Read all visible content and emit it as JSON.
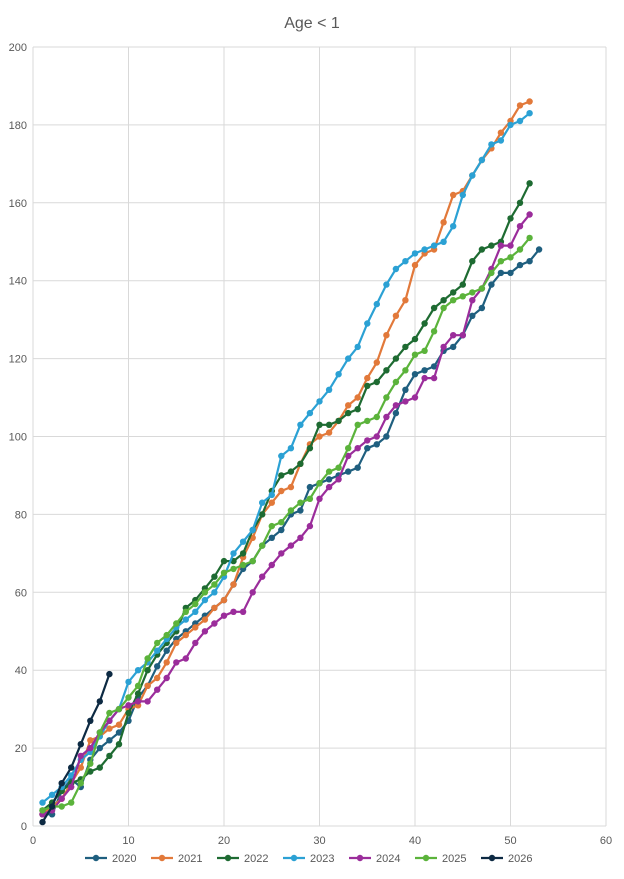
{
  "chart_data": {
    "type": "line",
    "title": "Age < 1",
    "xlabel": "",
    "ylabel": "",
    "xlim": [
      0,
      60
    ],
    "ylim": [
      0,
      200
    ],
    "x_ticks": [
      0,
      10,
      20,
      30,
      40,
      50,
      60
    ],
    "y_ticks": [
      0,
      20,
      40,
      60,
      80,
      100,
      120,
      140,
      160,
      180,
      200
    ],
    "grid": true,
    "legend_position": "bottom",
    "series": [
      {
        "name": "2020",
        "color": "#1f5f7f",
        "x": [
          1,
          2,
          3,
          4,
          5,
          6,
          7,
          8,
          9,
          10,
          11,
          12,
          13,
          14,
          15,
          16,
          17,
          18,
          19,
          20,
          21,
          22,
          23,
          24,
          25,
          26,
          27,
          28,
          29,
          30,
          31,
          32,
          33,
          34,
          35,
          36,
          37,
          38,
          39,
          40,
          41,
          42,
          43,
          44,
          45,
          46,
          47,
          48,
          49,
          50,
          51,
          52,
          53
        ],
        "y": [
          3,
          3,
          9,
          12,
          10,
          17,
          20,
          22,
          24,
          27,
          33,
          36,
          41,
          45,
          48,
          50,
          52,
          54,
          56,
          58,
          62,
          66,
          68,
          72,
          74,
          76,
          80,
          81,
          87,
          88,
          89,
          90,
          91,
          92,
          97,
          98,
          100,
          106,
          112,
          116,
          117,
          118,
          122,
          123,
          126,
          131,
          133,
          139,
          142,
          142,
          144,
          145,
          148
        ]
      },
      {
        "name": "2021",
        "color": "#e2793a",
        "x": [
          1,
          2,
          3,
          4,
          5,
          6,
          7,
          8,
          9,
          10,
          11,
          12,
          13,
          14,
          15,
          16,
          17,
          18,
          19,
          20,
          21,
          22,
          23,
          24,
          25,
          26,
          27,
          28,
          29,
          30,
          31,
          32,
          33,
          34,
          35,
          36,
          37,
          38,
          39,
          40,
          41,
          42,
          43,
          44,
          45,
          46,
          47,
          48,
          49,
          50,
          51,
          52
        ],
        "y": [
          3,
          5,
          7,
          11,
          15,
          22,
          23,
          25,
          26,
          30,
          31,
          36,
          38,
          42,
          47,
          49,
          51,
          53,
          56,
          58,
          62,
          69,
          74,
          80,
          83,
          86,
          87,
          93,
          98,
          100,
          101,
          104,
          108,
          110,
          115,
          119,
          126,
          131,
          135,
          144,
          147,
          148,
          155,
          162,
          163,
          167,
          171,
          174,
          178,
          181,
          185,
          186
        ]
      },
      {
        "name": "2022",
        "color": "#1e6b32",
        "x": [
          1,
          2,
          3,
          4,
          5,
          6,
          7,
          8,
          9,
          10,
          11,
          12,
          13,
          14,
          15,
          16,
          17,
          18,
          19,
          20,
          21,
          22,
          23,
          24,
          25,
          26,
          27,
          28,
          29,
          30,
          31,
          32,
          33,
          34,
          35,
          36,
          37,
          38,
          39,
          40,
          41,
          42,
          43,
          44,
          45,
          46,
          47,
          48,
          49,
          50,
          51,
          52
        ],
        "y": [
          4,
          6,
          9,
          11,
          12,
          14,
          15,
          18,
          21,
          29,
          34,
          40,
          44,
          47,
          50,
          56,
          58,
          61,
          64,
          68,
          68,
          70,
          76,
          80,
          86,
          90,
          91,
          93,
          97,
          103,
          103,
          104,
          106,
          107,
          113,
          114,
          117,
          120,
          123,
          125,
          129,
          133,
          135,
          137,
          139,
          145,
          148,
          149,
          150,
          156,
          160,
          165
        ]
      },
      {
        "name": "2023",
        "color": "#2ba1d4",
        "x": [
          1,
          2,
          3,
          4,
          5,
          6,
          7,
          8,
          9,
          10,
          11,
          12,
          13,
          14,
          15,
          16,
          17,
          18,
          19,
          20,
          21,
          22,
          23,
          24,
          25,
          26,
          27,
          28,
          29,
          30,
          31,
          32,
          33,
          34,
          35,
          36,
          37,
          38,
          39,
          40,
          41,
          42,
          43,
          44,
          45,
          46,
          47,
          48,
          49,
          50,
          51,
          52
        ],
        "y": [
          6,
          8,
          10,
          13,
          17,
          19,
          23,
          27,
          30,
          37,
          40,
          42,
          45,
          48,
          51,
          53,
          55,
          58,
          60,
          64,
          70,
          73,
          76,
          83,
          85,
          95,
          97,
          103,
          106,
          109,
          112,
          116,
          120,
          123,
          129,
          134,
          139,
          143,
          145,
          147,
          148,
          149,
          150,
          154,
          162,
          167,
          171,
          175,
          176,
          180,
          181,
          183
        ]
      },
      {
        "name": "2024",
        "color": "#9b2d9b",
        "x": [
          1,
          2,
          3,
          4,
          5,
          6,
          7,
          8,
          9,
          10,
          11,
          12,
          13,
          14,
          15,
          16,
          17,
          18,
          19,
          20,
          21,
          22,
          23,
          24,
          25,
          26,
          27,
          28,
          29,
          30,
          31,
          32,
          33,
          34,
          35,
          36,
          37,
          38,
          39,
          40,
          41,
          42,
          43,
          44,
          45,
          46,
          47,
          48,
          49,
          50,
          51,
          52
        ],
        "y": [
          3,
          4,
          7,
          10,
          18,
          20,
          24,
          27,
          30,
          31,
          32,
          32,
          35,
          38,
          42,
          43,
          47,
          50,
          52,
          54,
          55,
          55,
          60,
          64,
          67,
          70,
          72,
          74,
          77,
          84,
          87,
          89,
          95,
          97,
          99,
          100,
          105,
          108,
          109,
          110,
          115,
          115,
          123,
          126,
          126,
          135,
          138,
          143,
          149,
          149,
          154,
          157
        ]
      },
      {
        "name": "2025",
        "color": "#5bb33b",
        "x": [
          1,
          2,
          3,
          4,
          5,
          6,
          7,
          8,
          9,
          10,
          11,
          12,
          13,
          14,
          15,
          16,
          17,
          18,
          19,
          20,
          21,
          22,
          23,
          24,
          25,
          26,
          27,
          28,
          29,
          30,
          31,
          32,
          33,
          34,
          35,
          36,
          37,
          38,
          39,
          40,
          41,
          42,
          43,
          44,
          45,
          46,
          47,
          48,
          49,
          50,
          51,
          52
        ],
        "y": [
          4,
          5,
          5,
          6,
          11,
          16,
          24,
          29,
          30,
          33,
          36,
          43,
          47,
          49,
          52,
          55,
          57,
          60,
          62,
          65,
          66,
          67,
          68,
          72,
          77,
          78,
          81,
          83,
          84,
          88,
          91,
          92,
          97,
          103,
          104,
          105,
          110,
          114,
          117,
          121,
          122,
          127,
          133,
          135,
          136,
          137,
          138,
          142,
          145,
          146,
          148,
          151
        ]
      },
      {
        "name": "2026",
        "color": "#0d2a43",
        "x": [
          1,
          2,
          3,
          4,
          5,
          6,
          7,
          8
        ],
        "y": [
          1,
          5,
          11,
          15,
          21,
          27,
          32,
          39
        ]
      }
    ]
  }
}
